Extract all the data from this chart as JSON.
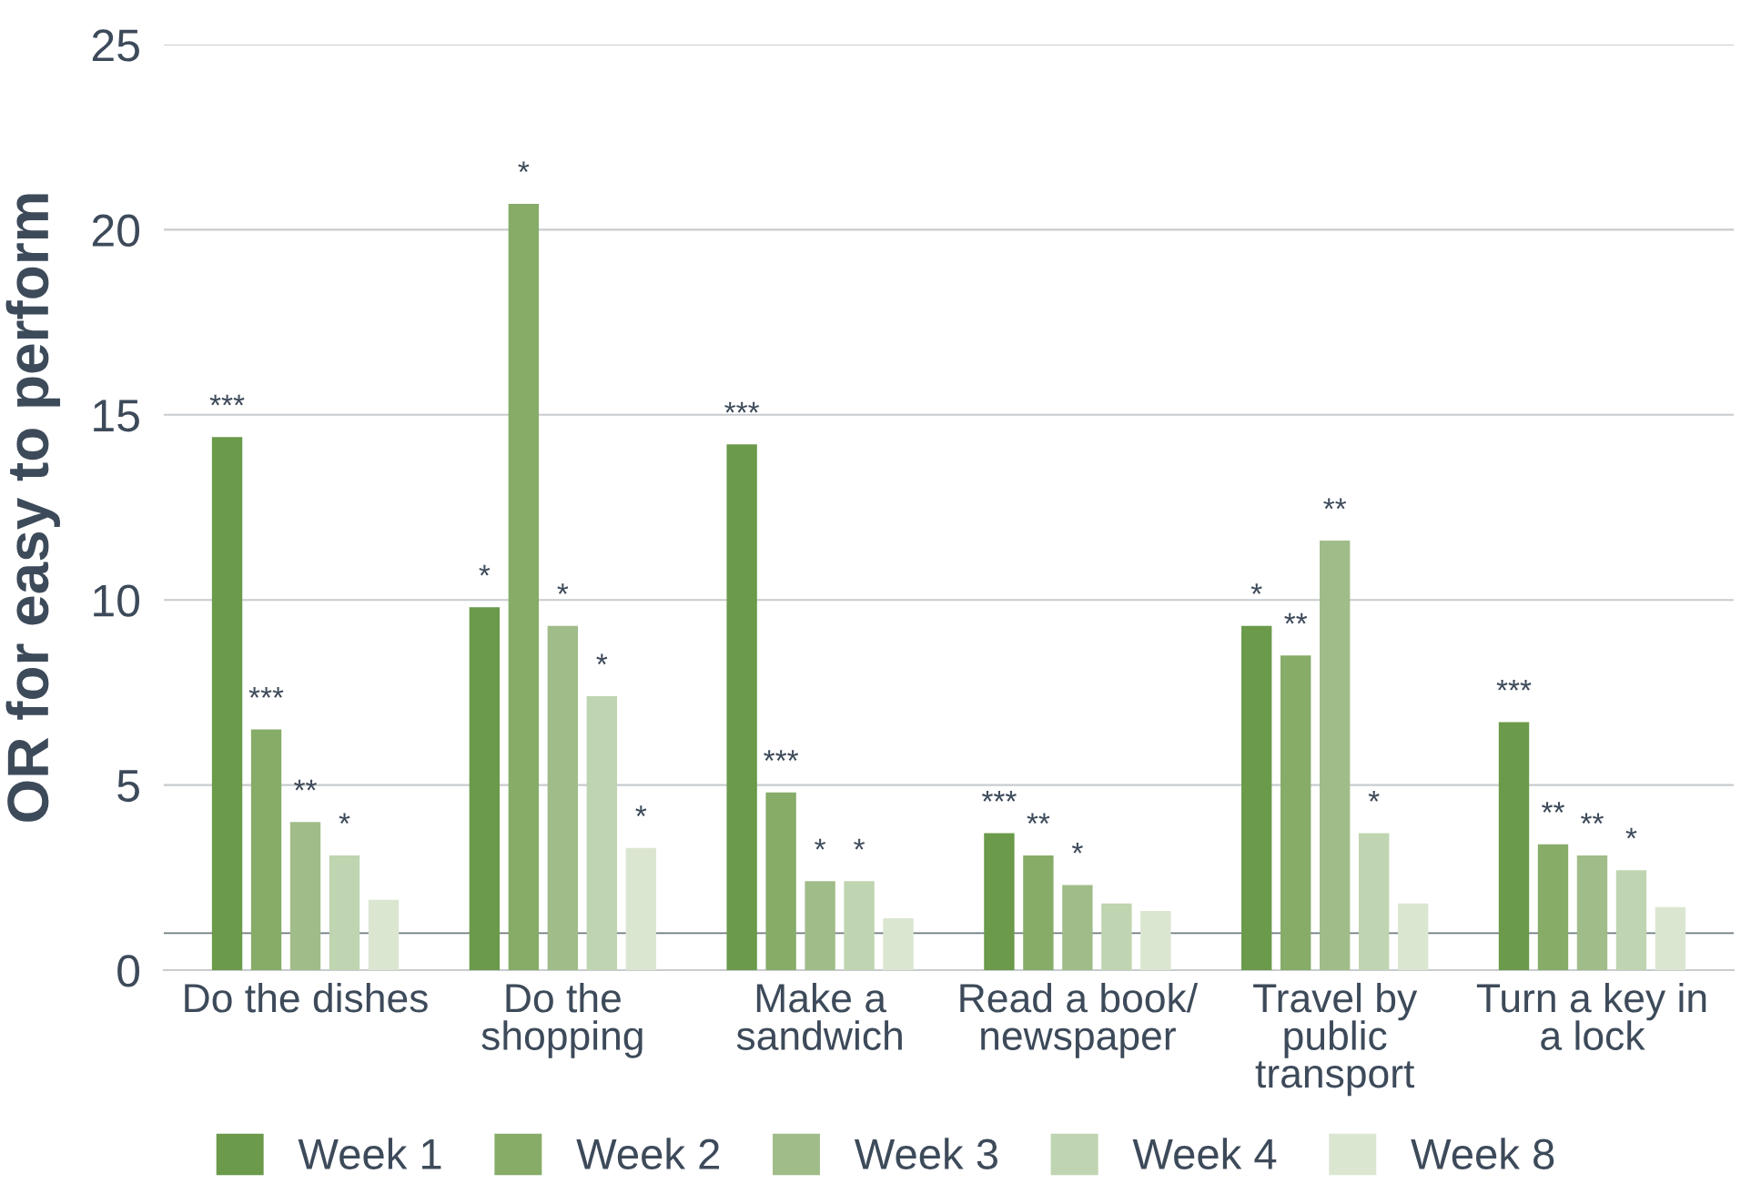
{
  "chart_data": {
    "type": "bar",
    "ylabel": "OR for easy to perform",
    "categories": [
      "Do the dishes",
      "Do the\nshopping",
      "Make a\nsandwich",
      "Read a book/\nnewspaper",
      "Travel by\npublic\ntransport",
      "Turn a key in\na lock"
    ],
    "series": [
      {
        "name": "Week 1",
        "color": "#6a9a4a",
        "values": [
          14.4,
          9.8,
          14.2,
          3.7,
          9.3,
          6.7
        ],
        "value_labels": [
          "***",
          "*",
          "***",
          "***",
          "*",
          "***"
        ]
      },
      {
        "name": "Week 2",
        "color": "#86ac68",
        "values": [
          6.5,
          20.7,
          4.8,
          3.1,
          8.5,
          3.4
        ],
        "value_labels": [
          "***",
          "*",
          "***",
          "**",
          "**",
          "**"
        ]
      },
      {
        "name": "Week 3",
        "color": "#a0bc88",
        "values": [
          4.0,
          9.3,
          2.4,
          2.3,
          11.6,
          3.1
        ],
        "value_labels": [
          "**",
          "*",
          "*",
          "*",
          "**",
          "**"
        ]
      },
      {
        "name": "Week 4",
        "color": "#bfd4b0",
        "values": [
          3.1,
          7.4,
          2.4,
          1.8,
          3.7,
          2.7
        ],
        "value_labels": [
          "*",
          "*",
          "*",
          null,
          "*",
          "*"
        ]
      },
      {
        "name": "Week 8",
        "color": "#dbe6d1",
        "values": [
          1.9,
          3.3,
          1.4,
          1.6,
          1.8,
          1.7
        ],
        "value_labels": [
          null,
          "*",
          null,
          null,
          null,
          null
        ]
      }
    ],
    "ylim": [
      0,
      25
    ],
    "yticks": [
      0,
      5,
      10,
      15,
      20,
      25
    ],
    "grid": "y",
    "legend": "bottom",
    "ref_lines": [
      {
        "axis": "y",
        "value": 1,
        "color": "#6e7b80"
      }
    ]
  }
}
